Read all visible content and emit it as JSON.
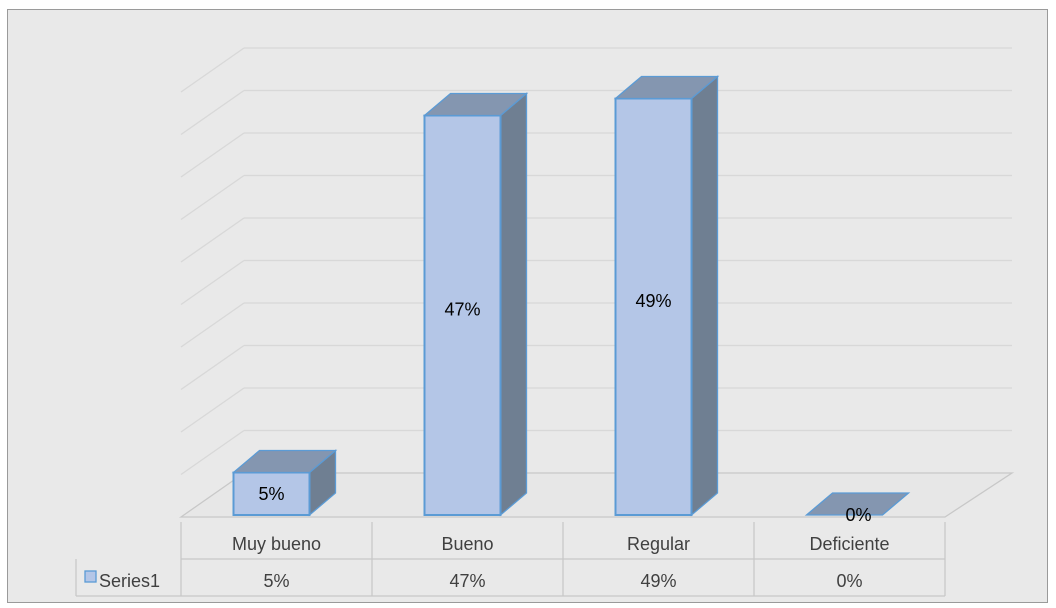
{
  "chart_data": {
    "type": "bar",
    "categories": [
      "Muy bueno",
      "Bueno",
      "Regular",
      "Deficiente"
    ],
    "series": [
      {
        "name": "Series1",
        "values": [
          5,
          47,
          49,
          0
        ],
        "labels": [
          "5%",
          "47%",
          "49%",
          "0%"
        ]
      }
    ],
    "ylim": [
      0,
      50
    ],
    "grid": true,
    "legend": "in data table",
    "data_table": true,
    "colors": {
      "bar_front": "#b4c6e7",
      "bar_side": "#6f7f92",
      "bar_top": "#8496b0",
      "bar_edge": "#5b9bd5",
      "background": "#e9e9e9",
      "gridline": "#d8d8d8"
    }
  }
}
